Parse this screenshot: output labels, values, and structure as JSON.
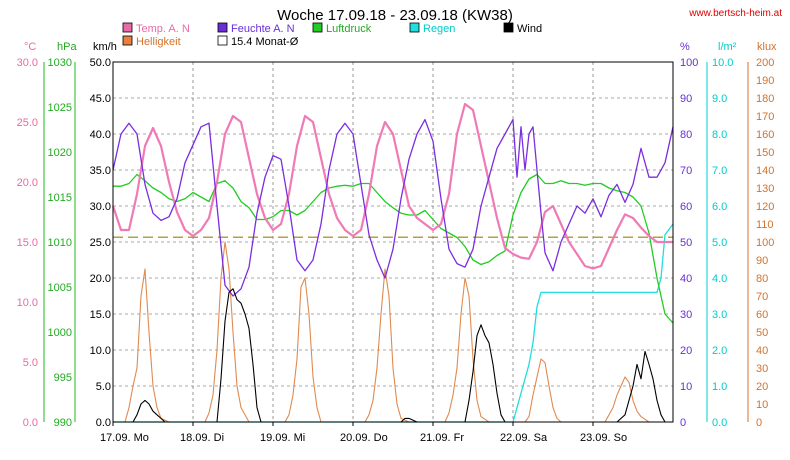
{
  "chart_data": {
    "type": "line",
    "title": "Woche 17.09.18 - 23.09.18 (KW38)",
    "source_url": "www.bertsch-heim.at",
    "x_domain": [
      0,
      7
    ],
    "x_ticks": [
      {
        "x": 0,
        "label": "17.09.",
        "day": "Mo"
      },
      {
        "x": 1,
        "label": "18.09.",
        "day": "Di"
      },
      {
        "x": 2,
        "label": "19.09.",
        "day": "Mi"
      },
      {
        "x": 3,
        "label": "20.09.",
        "day": "Do"
      },
      {
        "x": 4,
        "label": "21.09.",
        "day": "Fr"
      },
      {
        "x": 5,
        "label": "22.09.",
        "day": "Sa"
      },
      {
        "x": 6,
        "label": "23.09.",
        "day": "So"
      }
    ],
    "axes": {
      "temp": {
        "unit": "°C",
        "min": 0,
        "max": 30,
        "ticks": [
          "0.0",
          "5.0",
          "10.0",
          "15.0",
          "20.0",
          "25.0",
          "30.0"
        ],
        "color": "#e86aa8"
      },
      "press": {
        "unit": "hPa",
        "min": 990,
        "max": 1030,
        "ticks": [
          "990",
          "995",
          "1000",
          "1005",
          "1010",
          "1015",
          "1020",
          "1025",
          "1030"
        ],
        "color": "#22bb22"
      },
      "wind": {
        "unit": "km/h",
        "min": 0,
        "max": 50,
        "ticks": [
          "0.0",
          "5.0",
          "10.0",
          "15.0",
          "20.0",
          "25.0",
          "30.0",
          "35.0",
          "40.0",
          "45.0",
          "50.0"
        ],
        "color": "#000000"
      },
      "hum": {
        "unit": "%",
        "min": 0,
        "max": 100,
        "ticks": [
          "0",
          "10",
          "20",
          "30",
          "40",
          "50",
          "60",
          "70",
          "80",
          "90",
          "100"
        ],
        "color": "#6a2ed8"
      },
      "rain": {
        "unit": "l/m²",
        "min": 0,
        "max": 10,
        "ticks": [
          "0.0",
          "1.0",
          "2.0",
          "3.0",
          "4.0",
          "5.0",
          "6.0",
          "7.0",
          "8.0",
          "9.0",
          "10.0"
        ],
        "color": "#00cccc"
      },
      "light": {
        "unit": "klux",
        "min": 0,
        "max": 200,
        "ticks": [
          "0",
          "10",
          "20",
          "30",
          "40",
          "50",
          "60",
          "70",
          "80",
          "90",
          "100",
          "110",
          "120",
          "130",
          "140",
          "150",
          "160",
          "170",
          "180",
          "190",
          "200"
        ],
        "color": "#d4722a"
      }
    },
    "legend": [
      {
        "name": "Temp. A. N",
        "color": "#e86aa8",
        "label_color": "#e86aa8"
      },
      {
        "name": "Feuchte A. N",
        "color": "#6a2ed8",
        "label_color": "#6a2ed8"
      },
      {
        "name": "Luftdruck",
        "color": "#22cc22",
        "label_color": "#22aa22"
      },
      {
        "name": "Regen",
        "color": "#22dddd",
        "label_color": "#00cccc"
      },
      {
        "name": "Wind",
        "color": "#000000",
        "label_color": "#000000"
      },
      {
        "name": "Helligkeit",
        "color": "#e88040",
        "label_color": "#d4722a"
      },
      {
        "name": "15.4 Monat-Ø",
        "color": "#ffffff",
        "label_color": "#000000",
        "reference": 15.4
      }
    ],
    "series": [
      {
        "name": "Temp. A. N",
        "axis": "temp",
        "color": "#f07ab5",
        "width": 2.2,
        "x": [
          0,
          0.1,
          0.2,
          0.3,
          0.4,
          0.5,
          0.6,
          0.7,
          0.8,
          0.9,
          1.0,
          1.1,
          1.2,
          1.3,
          1.4,
          1.5,
          1.6,
          1.7,
          1.8,
          1.9,
          2.0,
          2.1,
          2.2,
          2.3,
          2.4,
          2.5,
          2.6,
          2.7,
          2.8,
          2.9,
          3.0,
          3.1,
          3.2,
          3.3,
          3.4,
          3.5,
          3.6,
          3.7,
          3.8,
          3.9,
          4.0,
          4.1,
          4.2,
          4.3,
          4.4,
          4.5,
          4.6,
          4.7,
          4.8,
          4.9,
          5.0,
          5.1,
          5.2,
          5.3,
          5.4,
          5.5,
          5.6,
          5.7,
          5.8,
          5.9,
          6.0,
          6.1,
          6.2,
          6.3,
          6.4,
          6.5,
          6.6,
          6.7,
          6.8,
          6.9,
          7.0
        ],
        "y": [
          18,
          16,
          16,
          19,
          23,
          24.5,
          23,
          20,
          17.5,
          16,
          15.5,
          16,
          17,
          20,
          24,
          25.5,
          25,
          22,
          19,
          17,
          16,
          16.5,
          19,
          23,
          25.5,
          25,
          22,
          19,
          17,
          16,
          15.5,
          16,
          19,
          23,
          25,
          24,
          21,
          18,
          17,
          16.5,
          16,
          16.5,
          19,
          24,
          26.5,
          26,
          23,
          20,
          17,
          14.5,
          14,
          13.7,
          13.6,
          15,
          17.5,
          18,
          16.5,
          15,
          14,
          13,
          12.8,
          13,
          14.5,
          16,
          17.3,
          17,
          16.2,
          15.5,
          15,
          15,
          15
        ]
      },
      {
        "name": "Feuchte A. N",
        "axis": "hum",
        "color": "#7a2ee0",
        "width": 1.3,
        "x": [
          0,
          0.1,
          0.2,
          0.3,
          0.4,
          0.5,
          0.6,
          0.7,
          0.8,
          0.9,
          1.0,
          1.1,
          1.2,
          1.3,
          1.4,
          1.5,
          1.6,
          1.7,
          1.8,
          1.9,
          2.0,
          2.1,
          2.2,
          2.3,
          2.4,
          2.5,
          2.6,
          2.7,
          2.8,
          2.9,
          3.0,
          3.1,
          3.2,
          3.3,
          3.4,
          3.5,
          3.6,
          3.7,
          3.8,
          3.9,
          4.0,
          4.1,
          4.2,
          4.3,
          4.4,
          4.5,
          4.6,
          4.7,
          4.8,
          4.9,
          5.0,
          5.05,
          5.1,
          5.15,
          5.2,
          5.25,
          5.3,
          5.35,
          5.4,
          5.5,
          5.6,
          5.7,
          5.8,
          5.9,
          6.0,
          6.1,
          6.2,
          6.3,
          6.4,
          6.5,
          6.6,
          6.7,
          6.8,
          6.9,
          7.0
        ],
        "y": [
          70,
          80,
          83,
          80,
          66,
          58,
          56,
          57,
          62,
          72,
          77,
          82,
          83,
          60,
          38,
          35,
          37,
          43,
          58,
          68,
          74,
          73,
          60,
          45,
          42,
          45,
          55,
          70,
          80,
          83,
          80,
          66,
          52,
          45,
          40,
          48,
          62,
          73,
          80,
          84,
          78,
          62,
          48,
          44,
          43,
          48,
          60,
          68,
          76,
          80,
          84,
          68,
          82,
          70,
          80,
          82,
          70,
          58,
          47,
          42,
          50,
          55,
          60,
          58,
          62,
          57,
          63,
          66,
          61,
          66,
          76,
          68,
          68,
          72,
          82
        ]
      },
      {
        "name": "Luftdruck",
        "axis": "press",
        "color": "#22cc22",
        "width": 1.3,
        "x": [
          0,
          0.1,
          0.2,
          0.3,
          0.4,
          0.5,
          0.6,
          0.7,
          0.8,
          0.9,
          1.0,
          1.1,
          1.2,
          1.3,
          1.4,
          1.5,
          1.6,
          1.7,
          1.8,
          1.9,
          2.0,
          2.1,
          2.2,
          2.3,
          2.4,
          2.5,
          2.6,
          2.7,
          2.8,
          2.9,
          3.0,
          3.1,
          3.2,
          3.3,
          3.4,
          3.5,
          3.6,
          3.7,
          3.8,
          3.9,
          4.0,
          4.1,
          4.2,
          4.3,
          4.4,
          4.5,
          4.6,
          4.7,
          4.8,
          4.9,
          5.0,
          5.1,
          5.2,
          5.3,
          5.4,
          5.5,
          5.6,
          5.7,
          5.8,
          5.9,
          6.0,
          6.1,
          6.2,
          6.3,
          6.4,
          6.5,
          6.6,
          6.7,
          6.8,
          6.9,
          7.0
        ],
        "y": [
          1016.2,
          1016.2,
          1016.5,
          1017.5,
          1016.8,
          1016,
          1015.5,
          1014.8,
          1014.5,
          1014.8,
          1015.5,
          1015,
          1014.5,
          1016.5,
          1016.8,
          1016,
          1014.5,
          1013.8,
          1012.5,
          1012.5,
          1012.8,
          1013.5,
          1013.5,
          1013,
          1013.5,
          1014.5,
          1015.5,
          1016,
          1016.2,
          1016.3,
          1016.2,
          1016.5,
          1016.5,
          1015.5,
          1014.5,
          1013.8,
          1013.2,
          1013,
          1013,
          1013.5,
          1012.5,
          1011.5,
          1011,
          1010.5,
          1009.5,
          1008,
          1007.5,
          1007.8,
          1008.5,
          1009,
          1013,
          1015.5,
          1017,
          1017.5,
          1016.5,
          1016.5,
          1016.8,
          1016.5,
          1016.5,
          1016.3,
          1016.5,
          1016.5,
          1016,
          1015.7,
          1015.5,
          1015,
          1014,
          1011,
          1006,
          1002,
          1001
        ]
      },
      {
        "name": "Regen",
        "axis": "rain",
        "color": "#22dddd",
        "width": 1.3,
        "x": [
          0,
          5.0,
          5.05,
          5.1,
          5.2,
          5.25,
          5.3,
          5.35,
          5.4,
          5.5,
          5.6,
          5.7,
          5.8,
          5.9,
          6.0,
          6.1,
          6.2,
          6.3,
          6.4,
          6.5,
          6.6,
          6.7,
          6.8,
          6.85,
          6.9,
          7.0
        ],
        "y": [
          0,
          0,
          0.4,
          0.8,
          1.6,
          2.2,
          3.2,
          3.6,
          3.6,
          3.6,
          3.6,
          3.6,
          3.6,
          3.6,
          3.6,
          3.6,
          3.6,
          3.6,
          3.6,
          3.6,
          3.6,
          3.6,
          3.6,
          4.0,
          5.2,
          5.5
        ]
      },
      {
        "name": "Wind",
        "axis": "wind",
        "color": "#000000",
        "width": 1.1,
        "x": [
          0,
          0.05,
          0.1,
          0.15,
          0.2,
          0.25,
          0.3,
          0.35,
          0.4,
          0.45,
          0.5,
          0.55,
          0.6,
          0.65,
          0.7,
          0.8,
          0.9,
          1.0,
          1.05,
          1.1,
          1.15,
          1.2,
          1.25,
          1.3,
          1.35,
          1.4,
          1.45,
          1.5,
          1.55,
          1.6,
          1.65,
          1.7,
          1.75,
          1.8,
          1.85,
          1.9,
          2.0,
          2.5,
          3.0,
          3.5,
          3.6,
          3.65,
          3.7,
          3.8,
          4.0,
          4.2,
          4.3,
          4.4,
          4.45,
          4.5,
          4.55,
          4.6,
          4.65,
          4.7,
          4.75,
          4.8,
          4.85,
          4.9,
          5.0,
          5.5,
          6.0,
          6.2,
          6.3,
          6.4,
          6.45,
          6.5,
          6.55,
          6.6,
          6.65,
          6.7,
          6.75,
          6.8,
          6.85,
          6.9,
          7.0
        ],
        "y": [
          0,
          0,
          0,
          0,
          0,
          0,
          1,
          2.5,
          3,
          2.5,
          1.5,
          1,
          0.5,
          0,
          0,
          0,
          0,
          0,
          0,
          0,
          0,
          0,
          0,
          0,
          6,
          14,
          18,
          18.5,
          17,
          16.5,
          15,
          13,
          8,
          2,
          0,
          0,
          0,
          0,
          0,
          0,
          0,
          0.5,
          0.5,
          0,
          0,
          0,
          0,
          0,
          3,
          7,
          12,
          13.5,
          12,
          11,
          8,
          4,
          1,
          0,
          0,
          0,
          0,
          0,
          0,
          1,
          3,
          5,
          8,
          6,
          9.8,
          8,
          6,
          3,
          1,
          0,
          0
        ]
      },
      {
        "name": "Helligkeit",
        "axis": "light",
        "color": "#e08a50",
        "width": 1.1,
        "x": [
          0,
          0.15,
          0.2,
          0.25,
          0.3,
          0.35,
          0.4,
          0.45,
          0.5,
          0.55,
          0.6,
          0.7,
          0.8,
          1.0,
          1.15,
          1.2,
          1.25,
          1.3,
          1.35,
          1.4,
          1.45,
          1.5,
          1.55,
          1.6,
          1.7,
          1.8,
          2.0,
          2.15,
          2.2,
          2.25,
          2.3,
          2.35,
          2.4,
          2.45,
          2.5,
          2.55,
          2.6,
          2.7,
          2.8,
          3.0,
          3.15,
          3.2,
          3.25,
          3.3,
          3.35,
          3.4,
          3.45,
          3.5,
          3.55,
          3.6,
          3.7,
          3.8,
          4.0,
          4.15,
          4.2,
          4.25,
          4.3,
          4.35,
          4.4,
          4.45,
          4.5,
          4.55,
          4.6,
          4.7,
          4.8,
          5.0,
          5.15,
          5.2,
          5.25,
          5.3,
          5.35,
          5.4,
          5.45,
          5.5,
          5.55,
          5.6,
          5.7,
          5.8,
          6.0,
          6.15,
          6.2,
          6.25,
          6.3,
          6.35,
          6.4,
          6.45,
          6.5,
          6.55,
          6.6,
          6.7,
          6.8,
          7.0
        ],
        "y": [
          0,
          0,
          8,
          20,
          30,
          70,
          85,
          50,
          20,
          8,
          2,
          0,
          0,
          0,
          0,
          5,
          15,
          40,
          80,
          100,
          85,
          50,
          20,
          8,
          0,
          0,
          0,
          0,
          4,
          15,
          35,
          75,
          80,
          60,
          25,
          8,
          0,
          0,
          0,
          0,
          0,
          4,
          12,
          30,
          60,
          85,
          70,
          30,
          10,
          2,
          0,
          0,
          0,
          0,
          5,
          15,
          30,
          60,
          80,
          70,
          35,
          12,
          3,
          0,
          0,
          0,
          0,
          3,
          15,
          25,
          35,
          33,
          20,
          8,
          2,
          0,
          0,
          0,
          0,
          0,
          4,
          8,
          15,
          20,
          25,
          22,
          12,
          6,
          3,
          0,
          0,
          0
        ]
      }
    ],
    "reference_lines": [
      {
        "name": "15.4 Monat-Ø",
        "axis": "temp",
        "y": 15.4,
        "color": "#a08000",
        "dash": "10,5"
      }
    ],
    "grid": true
  }
}
